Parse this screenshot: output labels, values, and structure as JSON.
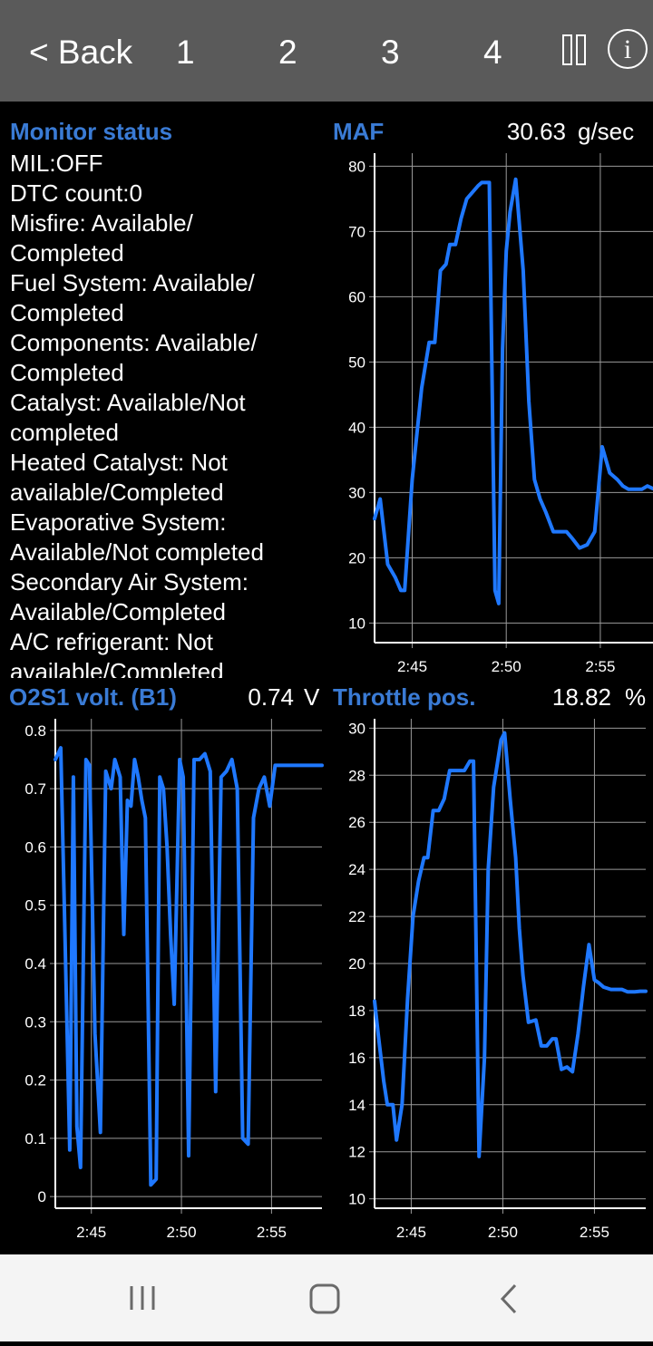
{
  "toolbar": {
    "back_label": "< Back",
    "tabs": [
      "1",
      "2",
      "3",
      "4"
    ],
    "pause_icon": "pause-icon",
    "info_label": "i",
    "background": "#5a5a5a"
  },
  "monitor": {
    "title": "Monitor status",
    "lines": [
      "MIL:OFF",
      "DTC count:0",
      "Misfire: Available/",
      "Completed",
      "Fuel System: Available/",
      "Completed",
      "Components: Available/",
      "Completed",
      "Catalyst: Available/Not",
      "completed",
      "Heated Catalyst: Not",
      "available/Completed",
      "Evaporative System:",
      "Available/Not completed",
      "Secondary Air System:",
      "Available/Completed",
      "A/C refrigerant: Not",
      "available/Completed"
    ]
  },
  "gauges": {
    "maf": {
      "name": "MAF",
      "value": "30.63",
      "unit": "g/sec"
    },
    "o2s1": {
      "name": "O2S1 volt. (B1)",
      "value": "0.74",
      "unit": "V"
    },
    "throttle": {
      "name": "Throttle pos.",
      "value": "18.82",
      "unit": "%"
    }
  },
  "colors": {
    "accent": "#3a7bd5",
    "line": "#1f78ff",
    "grid": "#9a9a9a"
  },
  "navbar": {
    "icons": [
      "recent-apps-icon",
      "home-icon",
      "back-icon"
    ]
  },
  "chart_data": [
    {
      "type": "line",
      "id": "maf",
      "x_ticks": [
        "2:45",
        "2:50",
        "2:55"
      ],
      "x_tick_values": [
        2.0,
        7.0,
        12.0
      ],
      "xlim": [
        0,
        14.8
      ],
      "ylim": [
        7,
        82
      ],
      "y_ticks": [
        10,
        20,
        30,
        40,
        50,
        60,
        70,
        80
      ],
      "series": [
        {
          "x": [
            0.0,
            0.3,
            0.7,
            1.1,
            1.4,
            1.6,
            2.0,
            2.5,
            2.9,
            3.2,
            3.5,
            3.8,
            4.0,
            4.3,
            4.6,
            4.9,
            5.2,
            5.5,
            5.7,
            6.1,
            6.4,
            6.6,
            6.8,
            7.0,
            7.2,
            7.5,
            7.9,
            8.2,
            8.5,
            8.8,
            9.1,
            9.5,
            9.8,
            10.2,
            10.5,
            10.9,
            11.3,
            11.7,
            12.1,
            12.5,
            12.9,
            13.2,
            13.5,
            13.8,
            14.2,
            14.5,
            14.8
          ],
          "y": [
            26,
            29,
            19,
            17,
            15,
            15,
            32,
            46,
            53,
            53,
            64,
            65,
            68,
            68,
            72,
            75,
            76,
            77,
            77.5,
            77.5,
            15,
            13,
            52,
            67,
            73,
            78,
            64,
            44,
            32,
            29,
            27,
            24,
            24,
            24,
            23,
            21.5,
            22,
            24,
            37,
            33,
            32,
            31,
            30.5,
            30.5,
            30.5,
            31,
            30.6
          ]
        }
      ]
    },
    {
      "type": "line",
      "id": "o2s1",
      "x_ticks": [
        "2:45",
        "2:50",
        "2:55"
      ],
      "x_tick_values": [
        2.0,
        7.0,
        12.0
      ],
      "xlim": [
        0,
        14.8
      ],
      "ylim": [
        -0.02,
        0.82
      ],
      "y_ticks": [
        0,
        0.1,
        0.2,
        0.3,
        0.4,
        0.5,
        0.6,
        0.7,
        0.8
      ],
      "series": [
        {
          "x": [
            0.0,
            0.3,
            0.5,
            0.8,
            1.0,
            1.2,
            1.4,
            1.7,
            1.9,
            2.2,
            2.5,
            2.8,
            3.1,
            3.3,
            3.6,
            3.8,
            4.0,
            4.2,
            4.4,
            4.6,
            4.8,
            5.0,
            5.3,
            5.6,
            5.8,
            6.0,
            6.2,
            6.4,
            6.6,
            6.9,
            7.1,
            7.4,
            7.7,
            8.0,
            8.3,
            8.6,
            8.9,
            9.2,
            9.5,
            9.8,
            10.1,
            10.4,
            10.7,
            11.0,
            11.3,
            11.6,
            11.9,
            12.2,
            12.5,
            12.8,
            13.1,
            13.4,
            13.7,
            14.0,
            14.3,
            14.6,
            14.8
          ],
          "y": [
            0.75,
            0.77,
            0.5,
            0.08,
            0.72,
            0.12,
            0.05,
            0.75,
            0.74,
            0.28,
            0.11,
            0.73,
            0.7,
            0.75,
            0.72,
            0.45,
            0.68,
            0.67,
            0.75,
            0.72,
            0.68,
            0.65,
            0.02,
            0.03,
            0.72,
            0.7,
            0.6,
            0.45,
            0.33,
            0.75,
            0.72,
            0.07,
            0.75,
            0.75,
            0.76,
            0.73,
            0.18,
            0.72,
            0.73,
            0.75,
            0.7,
            0.1,
            0.09,
            0.65,
            0.7,
            0.72,
            0.67,
            0.74,
            0.74,
            0.74,
            0.74,
            0.74,
            0.74,
            0.74,
            0.74,
            0.74,
            0.74
          ]
        }
      ]
    },
    {
      "type": "line",
      "id": "throttle",
      "x_ticks": [
        "2:45",
        "2:50",
        "2:55"
      ],
      "x_tick_values": [
        2.0,
        7.0,
        12.0
      ],
      "xlim": [
        0,
        14.8
      ],
      "ylim": [
        9.6,
        30.4
      ],
      "y_ticks": [
        10,
        12,
        14,
        16,
        18,
        20,
        22,
        24,
        26,
        28,
        30
      ],
      "series": [
        {
          "x": [
            0.0,
            0.2,
            0.5,
            0.7,
            1.0,
            1.2,
            1.5,
            1.8,
            2.1,
            2.4,
            2.7,
            2.9,
            3.2,
            3.5,
            3.8,
            4.1,
            4.4,
            4.6,
            4.9,
            5.2,
            5.4,
            5.7,
            6.0,
            6.2,
            6.5,
            6.7,
            6.9,
            7.1,
            7.4,
            7.7,
            7.9,
            8.1,
            8.4,
            8.8,
            9.1,
            9.4,
            9.7,
            9.9,
            10.2,
            10.5,
            10.8,
            11.1,
            11.4,
            11.7,
            12.0,
            12.2,
            12.5,
            12.9,
            13.2,
            13.5,
            13.8,
            14.2,
            14.5,
            14.8
          ],
          "y": [
            18.4,
            17,
            15,
            14,
            14,
            12.5,
            14,
            18.5,
            22,
            23.5,
            24.5,
            24.5,
            26.5,
            26.5,
            27,
            28.2,
            28.2,
            28.2,
            28.2,
            28.6,
            28.6,
            11.8,
            16,
            24,
            27.5,
            28.5,
            29.5,
            29.8,
            27,
            24.5,
            21.5,
            19.5,
            17.5,
            17.6,
            16.5,
            16.5,
            16.8,
            16.8,
            15.5,
            15.6,
            15.4,
            17,
            19,
            20.8,
            19.3,
            19.2,
            19,
            18.9,
            18.9,
            18.9,
            18.8,
            18.8,
            18.82,
            18.82
          ]
        }
      ]
    }
  ]
}
